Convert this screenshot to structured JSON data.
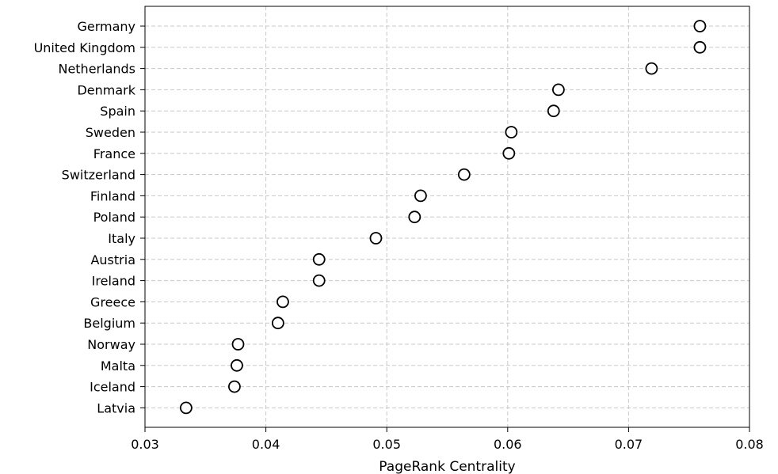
{
  "chart_data": {
    "type": "scatter",
    "xlabel": "PageRank Centrality",
    "ylabel": "",
    "xlim": [
      0.03,
      0.08
    ],
    "x_ticks": [
      "0.03",
      "0.04",
      "0.05",
      "0.06",
      "0.07",
      "0.08"
    ],
    "grid": true,
    "marker": "open-circle",
    "categories": [
      "Germany",
      "United Kingdom",
      "Netherlands",
      "Denmark",
      "Spain",
      "Sweden",
      "France",
      "Switzerland",
      "Finland",
      "Poland",
      "Italy",
      "Austria",
      "Ireland",
      "Greece",
      "Belgium",
      "Norway",
      "Malta",
      "Iceland",
      "Latvia"
    ],
    "values": [
      0.0759,
      0.0759,
      0.0719,
      0.0642,
      0.0638,
      0.0603,
      0.0601,
      0.0564,
      0.0528,
      0.0523,
      0.0491,
      0.0444,
      0.0444,
      0.0414,
      0.041,
      0.0377,
      0.0376,
      0.0374,
      0.0334
    ]
  }
}
